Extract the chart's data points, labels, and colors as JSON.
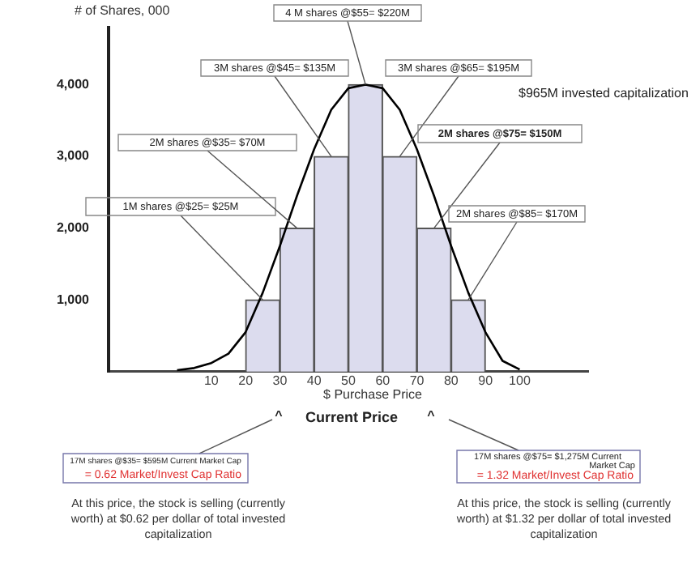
{
  "chart_data": {
    "type": "histogram",
    "ylabel": "# of Shares, 000",
    "xlabel": "$ Purchase Price",
    "bins": [
      20,
      30,
      40,
      50,
      60,
      70,
      80,
      90
    ],
    "xlim": [
      -20,
      120
    ],
    "xticks": [
      10,
      20,
      30,
      40,
      50,
      60,
      70,
      80,
      90,
      100
    ],
    "ylim": [
      0,
      4800
    ],
    "yticks": [
      {
        "value": 1000,
        "label": "1,000"
      },
      {
        "value": 2000,
        "label": "2,000"
      },
      {
        "value": 3000,
        "label": "3,000"
      },
      {
        "value": 4000,
        "label": "4,000"
      }
    ],
    "grid": false,
    "legend": false,
    "marker": "none",
    "series": [
      {
        "color": "#dcdcee",
        "values": [
          1000,
          2000,
          3000,
          4000,
          3000,
          2000,
          1000
        ]
      },
      {
        "type": "line",
        "color": "#000000",
        "x": [
          0,
          5,
          10,
          15,
          20,
          25,
          30,
          35,
          40,
          45,
          50,
          55,
          60,
          65,
          70,
          75,
          80,
          85,
          90,
          95,
          100
        ],
        "values": [
          20,
          50,
          120,
          250,
          550,
          1100,
          1750,
          2450,
          3100,
          3650,
          3950,
          4000,
          3950,
          3650,
          3100,
          2450,
          1750,
          1100,
          550,
          150,
          30
        ]
      }
    ],
    "annotations": [
      {
        "text": "1M shares @$25= $25M",
        "x": 25,
        "y": 1000
      },
      {
        "text": "2M shares @$35= $70M",
        "x": 35,
        "y": 2000
      },
      {
        "text": "3M shares @$45= $135M",
        "x": 45,
        "y": 3000
      },
      {
        "text": "4 M shares @$55= $220M",
        "x": 55,
        "y": 4000
      },
      {
        "text": "3M shares @$65= $195M",
        "x": 65,
        "y": 3000
      },
      {
        "text": "2M shares @$75= $150M",
        "x": 75,
        "y": 2000
      },
      {
        "text": "2M shares @$85= $170M",
        "x": 85,
        "y": 1000
      },
      "$965M invested capitalization",
      "Current Price",
      "^",
      "^",
      "17M shares @$35= $595M Current Market Cap",
      "= 0.62 Market/Invest Cap Ratio",
      "At this price, the stock is selling (currently worth) at $0.62 per dollar of total invested capitalization",
      "17M shares @$75= $1,275M Current Market Cap",
      "= 1.32 Market/Invest Cap Ratio",
      "At this price, the stock is selling (currently worth) at $1.32 per dollar of total invested capitalization"
    ]
  }
}
